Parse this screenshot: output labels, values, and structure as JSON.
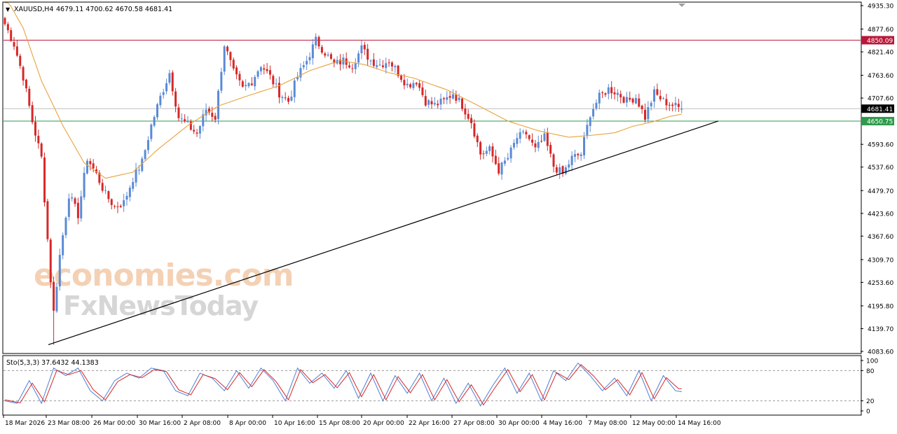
{
  "header": {
    "dropdown_glyph": "▼",
    "symbol": "XAUUSD,H4",
    "ohlc": "4679.11 4700.62 4670.58 4681.41"
  },
  "stochastic": {
    "label": "Sto(5,3,3) 37.6432 44.1383",
    "levels": [
      80,
      20
    ],
    "scale_labels": [
      "100",
      "80",
      "20",
      "0"
    ]
  },
  "watermark": {
    "line1": "economies.com",
    "line2": "FxNewsToday"
  },
  "colors": {
    "bull": "#5b8ad6",
    "bear": "#d62828",
    "ma": "#e8a33c",
    "resistance": "#b8183a",
    "support": "#2e9a4a",
    "current": "#000000",
    "stoch_main": "#4f7fd6",
    "stoch_signal": "#d62828"
  },
  "chart_data": {
    "type": "candlestick",
    "symbol": "XAUUSD",
    "timeframe": "H4",
    "ylim": [
      4083.6,
      4935.3
    ],
    "y_ticks": [
      "4935.30",
      "4877.60",
      "4821.40",
      "4763.60",
      "4707.60",
      "4593.60",
      "4537.60",
      "4479.70",
      "4423.60",
      "4367.60",
      "4309.70",
      "4253.60",
      "4195.80",
      "4139.70",
      "4083.60"
    ],
    "price_tags": [
      {
        "name": "resistance",
        "value": 4850.09,
        "label": "4850.09"
      },
      {
        "name": "current",
        "value": 4681.41,
        "label": "4681.41"
      },
      {
        "name": "support",
        "value": 4650.75,
        "label": "4650.75"
      }
    ],
    "x_labels": [
      "18 Mar 2026",
      "23 Mar 08:00",
      "26 Mar 00:00",
      "30 Mar 16:00",
      "2 Apr 08:00",
      "8 Apr 00:00",
      "10 Apr 16:00",
      "15 Apr 08:00",
      "20 Apr 00:00",
      "22 Apr 16:00",
      "27 Apr 08:00",
      "30 Apr 00:00",
      "4 May 16:00",
      "7 May 08:00",
      "12 May 00:00",
      "14 May 16:00"
    ],
    "trendline": {
      "from": {
        "x": "23 Mar 00:00",
        "y": 4100
      },
      "to": {
        "x": "14 May 16:00",
        "y": 4651
      }
    },
    "moving_average": {
      "anchors": [
        [
          0,
          4960
        ],
        [
          6,
          4880
        ],
        [
          12,
          4750
        ],
        [
          19,
          4640
        ],
        [
          26,
          4548
        ],
        [
          33,
          4510
        ],
        [
          42,
          4525
        ],
        [
          50,
          4580
        ],
        [
          60,
          4640
        ],
        [
          70,
          4688
        ],
        [
          80,
          4714
        ],
        [
          90,
          4738
        ],
        [
          100,
          4775
        ],
        [
          110,
          4800
        ],
        [
          118,
          4790
        ],
        [
          126,
          4770
        ],
        [
          134,
          4757
        ],
        [
          145,
          4728
        ],
        [
          155,
          4690
        ],
        [
          165,
          4651
        ],
        [
          175,
          4627
        ],
        [
          185,
          4611
        ],
        [
          194,
          4617
        ],
        [
          200,
          4622
        ],
        [
          206,
          4638
        ],
        [
          212,
          4648
        ],
        [
          218,
          4662
        ],
        [
          222,
          4668
        ]
      ]
    },
    "price_path": {
      "anchors": [
        [
          0,
          4890
        ],
        [
          3,
          4840
        ],
        [
          6,
          4760
        ],
        [
          9,
          4650
        ],
        [
          12,
          4560
        ],
        [
          15,
          4260
        ],
        [
          16,
          4180
        ],
        [
          18,
          4320
        ],
        [
          21,
          4470
        ],
        [
          24,
          4420
        ],
        [
          27,
          4560
        ],
        [
          30,
          4520
        ],
        [
          33,
          4470
        ],
        [
          36,
          4440
        ],
        [
          39,
          4450
        ],
        [
          42,
          4510
        ],
        [
          45,
          4550
        ],
        [
          48,
          4640
        ],
        [
          51,
          4710
        ],
        [
          54,
          4770
        ],
        [
          57,
          4660
        ],
        [
          60,
          4640
        ],
        [
          63,
          4620
        ],
        [
          66,
          4680
        ],
        [
          69,
          4660
        ],
        [
          72,
          4840
        ],
        [
          75,
          4770
        ],
        [
          78,
          4730
        ],
        [
          81,
          4750
        ],
        [
          84,
          4790
        ],
        [
          87,
          4760
        ],
        [
          90,
          4720
        ],
        [
          93,
          4700
        ],
        [
          96,
          4760
        ],
        [
          99,
          4800
        ],
        [
          102,
          4850
        ],
        [
          105,
          4820
        ],
        [
          108,
          4790
        ],
        [
          111,
          4800
        ],
        [
          114,
          4790
        ],
        [
          117,
          4830
        ],
        [
          120,
          4800
        ],
        [
          123,
          4790
        ],
        [
          126,
          4800
        ],
        [
          129,
          4770
        ],
        [
          132,
          4740
        ],
        [
          135,
          4750
        ],
        [
          138,
          4700
        ],
        [
          141,
          4690
        ],
        [
          144,
          4700
        ],
        [
          147,
          4720
        ],
        [
          150,
          4690
        ],
        [
          153,
          4650
        ],
        [
          156,
          4570
        ],
        [
          159,
          4580
        ],
        [
          162,
          4530
        ],
        [
          165,
          4560
        ],
        [
          168,
          4610
        ],
        [
          171,
          4620
        ],
        [
          174,
          4580
        ],
        [
          177,
          4610
        ],
        [
          180,
          4540
        ],
        [
          183,
          4520
        ],
        [
          186,
          4560
        ],
        [
          189,
          4570
        ],
        [
          192,
          4670
        ],
        [
          195,
          4710
        ],
        [
          198,
          4730
        ],
        [
          201,
          4720
        ],
        [
          204,
          4700
        ],
        [
          207,
          4710
        ],
        [
          210,
          4660
        ],
        [
          213,
          4720
        ],
        [
          216,
          4700
        ],
        [
          219,
          4690
        ],
        [
          222,
          4681.41
        ]
      ]
    },
    "stochastic": {
      "ylim": [
        0,
        100
      ],
      "levels": [
        80,
        20
      ],
      "main_anchors": [
        [
          0,
          20
        ],
        [
          4,
          15
        ],
        [
          8,
          60
        ],
        [
          12,
          15
        ],
        [
          16,
          85
        ],
        [
          20,
          70
        ],
        [
          24,
          85
        ],
        [
          28,
          40
        ],
        [
          32,
          20
        ],
        [
          36,
          60
        ],
        [
          40,
          75
        ],
        [
          44,
          65
        ],
        [
          48,
          85
        ],
        [
          52,
          80
        ],
        [
          56,
          40
        ],
        [
          60,
          30
        ],
        [
          64,
          75
        ],
        [
          68,
          65
        ],
        [
          72,
          40
        ],
        [
          76,
          80
        ],
        [
          80,
          45
        ],
        [
          84,
          85
        ],
        [
          88,
          60
        ],
        [
          92,
          20
        ],
        [
          96,
          85
        ],
        [
          100,
          55
        ],
        [
          104,
          75
        ],
        [
          108,
          45
        ],
        [
          112,
          80
        ],
        [
          116,
          25
        ],
        [
          120,
          75
        ],
        [
          124,
          20
        ],
        [
          128,
          70
        ],
        [
          132,
          35
        ],
        [
          136,
          75
        ],
        [
          140,
          20
        ],
        [
          144,
          65
        ],
        [
          148,
          15
        ],
        [
          152,
          55
        ],
        [
          156,
          10
        ],
        [
          160,
          50
        ],
        [
          164,
          85
        ],
        [
          168,
          35
        ],
        [
          172,
          75
        ],
        [
          176,
          20
        ],
        [
          180,
          80
        ],
        [
          184,
          60
        ],
        [
          188,
          95
        ],
        [
          192,
          70
        ],
        [
          196,
          40
        ],
        [
          200,
          65
        ],
        [
          204,
          30
        ],
        [
          208,
          80
        ],
        [
          212,
          20
        ],
        [
          216,
          70
        ],
        [
          220,
          40
        ],
        [
          222,
          38
        ]
      ],
      "signal_anchors": [
        [
          0,
          22
        ],
        [
          5,
          16
        ],
        [
          9,
          55
        ],
        [
          13,
          18
        ],
        [
          17,
          80
        ],
        [
          21,
          72
        ],
        [
          25,
          80
        ],
        [
          29,
          42
        ],
        [
          33,
          22
        ],
        [
          37,
          58
        ],
        [
          41,
          72
        ],
        [
          45,
          66
        ],
        [
          49,
          82
        ],
        [
          53,
          78
        ],
        [
          57,
          42
        ],
        [
          61,
          32
        ],
        [
          65,
          72
        ],
        [
          69,
          64
        ],
        [
          73,
          42
        ],
        [
          77,
          76
        ],
        [
          81,
          48
        ],
        [
          85,
          82
        ],
        [
          89,
          58
        ],
        [
          93,
          22
        ],
        [
          97,
          82
        ],
        [
          101,
          56
        ],
        [
          105,
          72
        ],
        [
          109,
          46
        ],
        [
          113,
          76
        ],
        [
          117,
          28
        ],
        [
          121,
          72
        ],
        [
          125,
          22
        ],
        [
          129,
          68
        ],
        [
          133,
          36
        ],
        [
          137,
          72
        ],
        [
          141,
          22
        ],
        [
          145,
          62
        ],
        [
          149,
          18
        ],
        [
          153,
          52
        ],
        [
          157,
          12
        ],
        [
          161,
          48
        ],
        [
          165,
          82
        ],
        [
          169,
          38
        ],
        [
          173,
          72
        ],
        [
          177,
          22
        ],
        [
          181,
          76
        ],
        [
          185,
          62
        ],
        [
          189,
          92
        ],
        [
          193,
          70
        ],
        [
          197,
          42
        ],
        [
          201,
          62
        ],
        [
          205,
          32
        ],
        [
          209,
          76
        ],
        [
          213,
          24
        ],
        [
          217,
          66
        ],
        [
          221,
          44
        ],
        [
          222,
          44.14
        ]
      ]
    }
  }
}
